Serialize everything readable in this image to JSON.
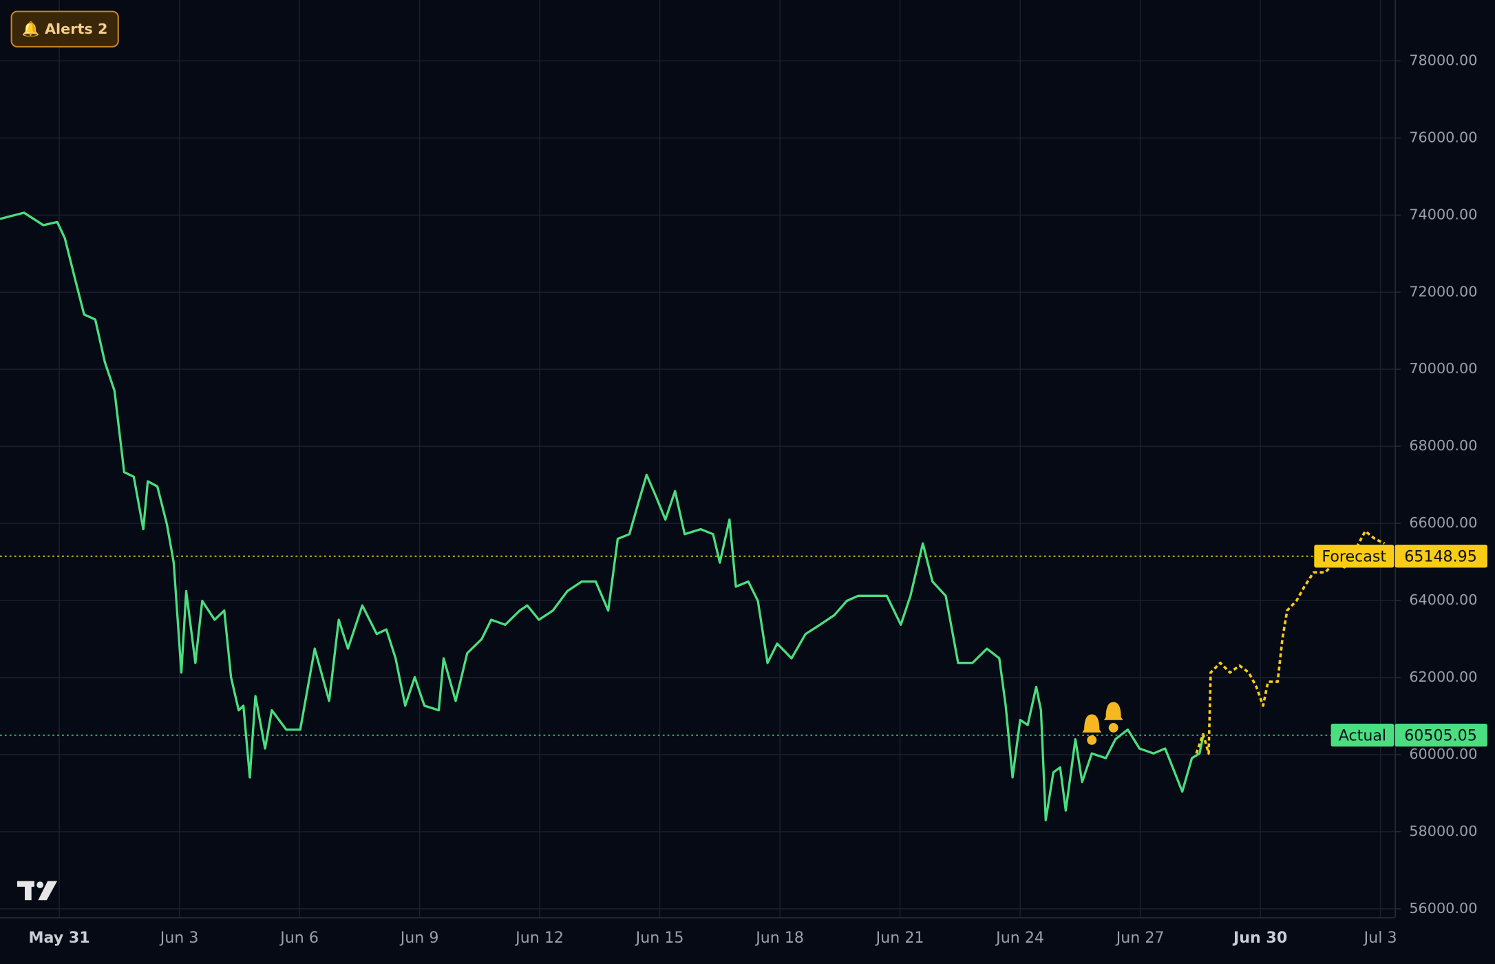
{
  "chart_data": {
    "type": "line",
    "alerts_button": "🔔 Alerts 2",
    "xlim": [
      -1.48,
      33.36
    ],
    "ylim": [
      55780,
      79580
    ],
    "xticks": [
      {
        "value": 0,
        "label": "May 31",
        "bold": true
      },
      {
        "value": 3,
        "label": "Jun 3"
      },
      {
        "value": 6,
        "label": "Jun 6"
      },
      {
        "value": 9,
        "label": "Jun 9"
      },
      {
        "value": 12,
        "label": "Jun 12"
      },
      {
        "value": 15,
        "label": "Jun 15"
      },
      {
        "value": 18,
        "label": "Jun 18"
      },
      {
        "value": 21,
        "label": "Jun 21"
      },
      {
        "value": 24,
        "label": "Jun 24"
      },
      {
        "value": 27,
        "label": "Jun 27"
      },
      {
        "value": 30,
        "label": "Jun 30",
        "bold": true
      },
      {
        "value": 33,
        "label": "Jul 3"
      }
    ],
    "yticks": [
      {
        "value": 56000,
        "label": "56000.00"
      },
      {
        "value": 58000,
        "label": "58000.00"
      },
      {
        "value": 60000,
        "label": "60000.00"
      },
      {
        "value": 62000,
        "label": "62000.00"
      },
      {
        "value": 64000,
        "label": "64000.00"
      },
      {
        "value": 66000,
        "label": "66000.00"
      },
      {
        "value": 68000,
        "label": "68000.00"
      },
      {
        "value": 70000,
        "label": "70000.00"
      },
      {
        "value": 72000,
        "label": "72000.00"
      },
      {
        "value": 74000,
        "label": "74000.00"
      },
      {
        "value": 76000,
        "label": "76000.00"
      },
      {
        "value": 78000,
        "label": "78000.00"
      }
    ],
    "grid": true,
    "series": [
      {
        "name": "Actual",
        "color": "#4ade80",
        "dashed": false,
        "last_value": 60505.05,
        "x": [
          -1.48,
          -0.88,
          -0.4,
          -0.05,
          0.14,
          0.38,
          0.62,
          0.9,
          1.14,
          1.38,
          1.62,
          1.86,
          2.1,
          2.21,
          2.45,
          2.69,
          2.86,
          3.05,
          3.17,
          3.4,
          3.57,
          3.88,
          4.12,
          4.29,
          4.48,
          4.6,
          4.76,
          4.9,
          5.14,
          5.31,
          5.67,
          6.02,
          6.38,
          6.74,
          6.98,
          7.21,
          7.57,
          7.93,
          8.17,
          8.4,
          8.64,
          8.88,
          9.12,
          9.48,
          9.6,
          9.9,
          10.19,
          10.55,
          10.79,
          11.14,
          11.5,
          11.69,
          11.98,
          12.33,
          12.69,
          13.05,
          13.4,
          13.71,
          13.95,
          14.24,
          14.48,
          14.67,
          14.9,
          15.14,
          15.38,
          15.62,
          16.02,
          16.33,
          16.5,
          16.74,
          16.9,
          17.21,
          17.45,
          17.69,
          17.93,
          18.29,
          18.64,
          19.0,
          19.36,
          19.67,
          19.95,
          20.31,
          20.67,
          21.02,
          21.26,
          21.57,
          21.81,
          22.14,
          22.45,
          22.81,
          23.17,
          23.48,
          23.64,
          23.81,
          24.0,
          24.19,
          24.4,
          24.52,
          24.64,
          24.83,
          25.0,
          25.14,
          25.38,
          25.55,
          25.79,
          26.14,
          26.38,
          26.69,
          26.98,
          27.33,
          27.62,
          27.86,
          28.05,
          28.29,
          28.48,
          28.57
        ],
        "values": [
          73900,
          74060,
          73740,
          73820,
          73400,
          72400,
          71420,
          71290,
          70180,
          69440,
          67330,
          67210,
          65850,
          67090,
          66960,
          65970,
          64980,
          62130,
          64240,
          62380,
          63990,
          63500,
          63740,
          62010,
          61150,
          61270,
          59410,
          61520,
          60160,
          61150,
          60650,
          60650,
          62750,
          61390,
          63500,
          62750,
          63870,
          63130,
          63250,
          62500,
          61270,
          62010,
          61270,
          61150,
          62500,
          61390,
          62630,
          63000,
          63500,
          63370,
          63740,
          63870,
          63500,
          63740,
          64240,
          64490,
          64490,
          63740,
          65600,
          65720,
          66590,
          67260,
          66710,
          66100,
          66840,
          65720,
          65850,
          65720,
          64980,
          66100,
          64360,
          64490,
          63990,
          62380,
          62880,
          62500,
          63130,
          63370,
          63620,
          63990,
          64120,
          64120,
          64120,
          63370,
          64120,
          65480,
          64490,
          64120,
          62380,
          62380,
          62750,
          62500,
          61270,
          59410,
          60900,
          60770,
          61760,
          61150,
          58300,
          59540,
          59670,
          58550,
          60400,
          59290,
          60030,
          59910,
          60400,
          60650,
          60160,
          60030,
          60160,
          59540,
          59040,
          59910,
          60030,
          60480
        ]
      },
      {
        "name": "Forecast",
        "color": "#facc15",
        "dashed": true,
        "last_value": 65148.95,
        "x": [
          28.4,
          28.57,
          28.71,
          28.76,
          29.0,
          29.24,
          29.48,
          29.71,
          29.9,
          30.07,
          30.19,
          30.43,
          30.55,
          30.67,
          30.9,
          31.1,
          31.33,
          31.62,
          31.86,
          32.1,
          32.33,
          32.62,
          32.86,
          33.1
        ],
        "values": [
          60030,
          60530,
          60030,
          62130,
          62380,
          62130,
          62310,
          62130,
          61760,
          61270,
          61890,
          61890,
          63000,
          63740,
          63990,
          64360,
          64730,
          64730,
          64980,
          64860,
          65230,
          65800,
          65600,
          65480
        ]
      }
    ],
    "alert_markers": [
      {
        "x": 25.79,
        "y": 60650
      },
      {
        "x": 26.33,
        "y": 60970
      }
    ]
  }
}
